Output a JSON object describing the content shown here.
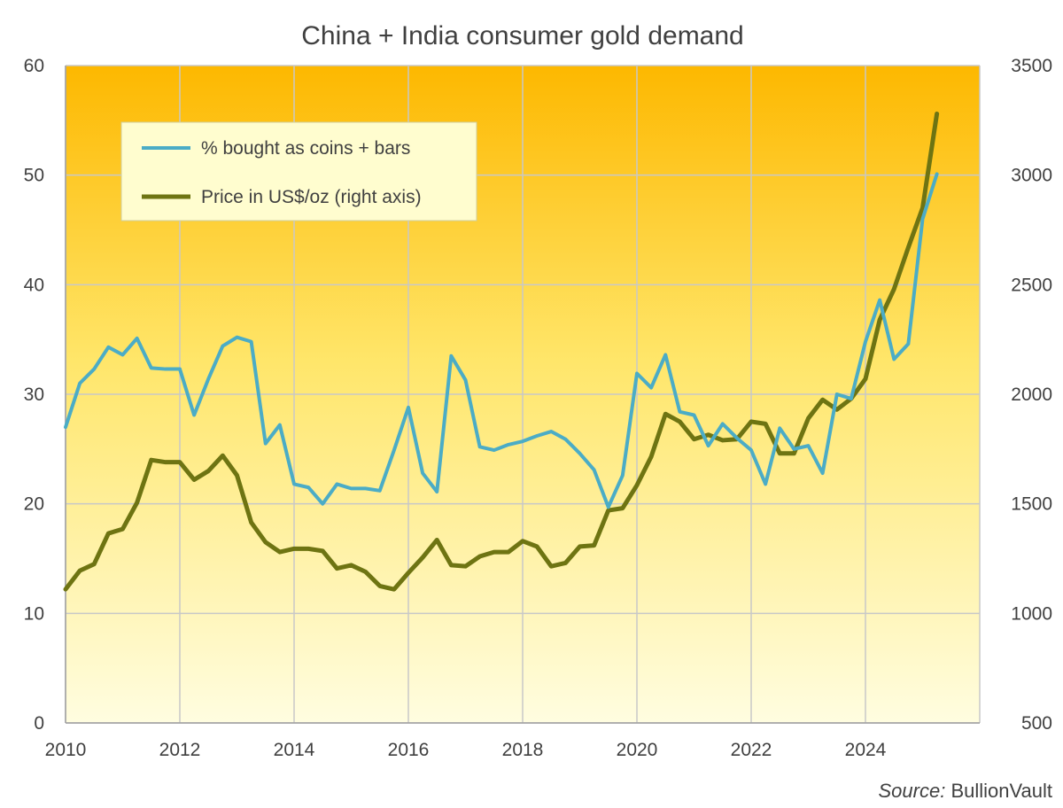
{
  "colors": {
    "plot_top": "#FDB800",
    "plot_bottom": "#FFFDE0",
    "coins_line": "#4BACC6",
    "price_line": "#6E7412",
    "grid": "#C8C8C8",
    "legend_bg": "#FFFDCF"
  },
  "chart_data": {
    "type": "line",
    "title": "China + India consumer gold demand",
    "x_ticks": [
      "2010",
      "2012",
      "2014",
      "2016",
      "2018",
      "2020",
      "2022",
      "2024"
    ],
    "xlim": [
      2010,
      2026
    ],
    "y_left": {
      "ticks": [
        "0",
        "10",
        "20",
        "30",
        "40",
        "50",
        "60"
      ],
      "ylim": [
        0,
        60
      ]
    },
    "y_right": {
      "ticks": [
        "500",
        "1000",
        "1500",
        "2000",
        "2500",
        "3000",
        "3500"
      ],
      "ylim": [
        500,
        3500
      ]
    },
    "legend": "top-left",
    "series": [
      {
        "name": "% bought as coins + bars",
        "axis": "left",
        "x": [
          2010.0,
          2010.25,
          2010.5,
          2010.75,
          2011.0,
          2011.25,
          2011.5,
          2011.75,
          2012.0,
          2012.25,
          2012.5,
          2012.75,
          2013.0,
          2013.25,
          2013.5,
          2013.75,
          2014.0,
          2014.25,
          2014.5,
          2014.75,
          2015.0,
          2015.25,
          2015.5,
          2015.75,
          2016.0,
          2016.25,
          2016.5,
          2016.75,
          2017.0,
          2017.25,
          2017.5,
          2017.75,
          2018.0,
          2018.25,
          2018.5,
          2018.75,
          2019.0,
          2019.25,
          2019.5,
          2019.75,
          2020.0,
          2020.25,
          2020.5,
          2020.75,
          2021.0,
          2021.25,
          2021.5,
          2021.75,
          2022.0,
          2022.25,
          2022.5,
          2022.75,
          2023.0,
          2023.25,
          2023.5,
          2023.75,
          2024.0,
          2024.25,
          2024.5,
          2024.75,
          2025.0,
          2025.25
        ],
        "values": [
          27.0,
          31.0,
          32.3,
          34.3,
          33.6,
          35.1,
          32.4,
          32.3,
          32.3,
          28.1,
          31.4,
          34.4,
          35.2,
          34.8,
          25.5,
          27.2,
          21.8,
          21.5,
          20.0,
          21.8,
          21.4,
          21.4,
          21.2,
          24.9,
          28.8,
          22.8,
          21.1,
          33.5,
          31.3,
          25.2,
          24.9,
          25.4,
          25.7,
          26.2,
          26.6,
          25.9,
          24.6,
          23.1,
          19.7,
          22.6,
          31.9,
          30.6,
          33.6,
          28.4,
          28.1,
          25.3,
          27.3,
          26.0,
          24.9,
          21.8,
          26.9,
          25.0,
          25.3,
          22.8,
          30.0,
          29.6,
          34.8,
          38.6,
          33.2,
          34.6,
          46.0,
          50.1
        ]
      },
      {
        "name": "Price in US$/oz (right axis)",
        "axis": "right",
        "x": [
          2010.0,
          2010.25,
          2010.5,
          2010.75,
          2011.0,
          2011.25,
          2011.5,
          2011.75,
          2012.0,
          2012.25,
          2012.5,
          2012.75,
          2013.0,
          2013.25,
          2013.5,
          2013.75,
          2014.0,
          2014.25,
          2014.5,
          2014.75,
          2015.0,
          2015.25,
          2015.5,
          2015.75,
          2016.0,
          2016.25,
          2016.5,
          2016.75,
          2017.0,
          2017.25,
          2017.5,
          2017.75,
          2018.0,
          2018.25,
          2018.5,
          2018.75,
          2019.0,
          2019.25,
          2019.5,
          2019.75,
          2020.0,
          2020.25,
          2020.5,
          2020.75,
          2021.0,
          2021.25,
          2021.5,
          2021.75,
          2022.0,
          2022.25,
          2022.5,
          2022.75,
          2023.0,
          2023.25,
          2023.5,
          2023.75,
          2024.0,
          2024.25,
          2024.5,
          2024.75,
          2025.0,
          2025.25
        ],
        "values": [
          1110,
          1195,
          1225,
          1365,
          1385,
          1505,
          1700,
          1690,
          1690,
          1610,
          1650,
          1720,
          1630,
          1415,
          1325,
          1280,
          1295,
          1295,
          1285,
          1205,
          1220,
          1190,
          1125,
          1110,
          1185,
          1255,
          1335,
          1220,
          1215,
          1260,
          1280,
          1280,
          1330,
          1305,
          1215,
          1230,
          1305,
          1310,
          1470,
          1480,
          1585,
          1715,
          1910,
          1875,
          1795,
          1815,
          1790,
          1795,
          1875,
          1865,
          1730,
          1730,
          1890,
          1975,
          1930,
          1980,
          2070,
          2340,
          2480,
          2670,
          2850,
          3280
        ]
      }
    ]
  },
  "source": {
    "label": "Source:",
    "name": " BullionVault"
  }
}
